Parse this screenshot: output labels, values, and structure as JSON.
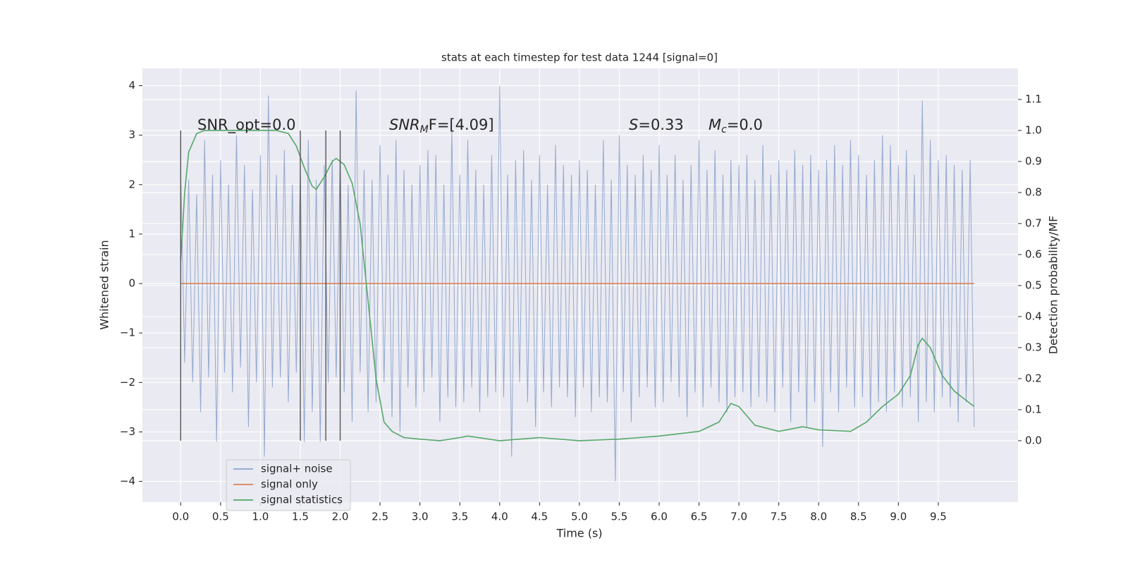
{
  "chart_data": {
    "type": "line",
    "title": "stats at each timestep for test data 1244 [signal=0]",
    "xlabel": "Time (s)",
    "ylabel": "Whitened strain",
    "y2label": "Detection probability/MF",
    "xlim": [
      -0.48,
      10.5
    ],
    "ylim": [
      -4.42,
      4.35
    ],
    "y2lim": [
      -0.198,
      1.2
    ],
    "xticks": [
      {
        "value": 0,
        "label": "0.0"
      },
      0.5,
      {
        "value": 1,
        "label": "1.0"
      },
      1.5,
      {
        "value": 2,
        "label": "2.0"
      },
      2.5,
      {
        "value": 3,
        "label": "3.0"
      },
      3.5,
      {
        "value": 4,
        "label": "4.0"
      },
      4.5,
      {
        "value": 5,
        "label": "5.0"
      },
      5.5,
      {
        "value": 6,
        "label": "6.0"
      },
      6.5,
      {
        "value": 7,
        "label": "7.0"
      },
      7.5,
      {
        "value": 8,
        "label": "8.0"
      },
      8.5,
      {
        "value": 9,
        "label": "9.0"
      },
      9.5
    ],
    "yticks": [
      {
        "value": -4,
        "label": "−4"
      },
      {
        "value": -3,
        "label": "−3"
      },
      {
        "value": -2,
        "label": "−2"
      },
      {
        "value": -1,
        "label": "−1"
      },
      0,
      1,
      2,
      3,
      4
    ],
    "y2ticks": [
      {
        "value": 0,
        "label": "0.0"
      },
      0.1,
      0.2,
      0.3,
      0.4,
      0.5,
      0.6,
      0.7,
      0.8,
      0.9,
      {
        "value": 1,
        "label": "1.0"
      },
      1.1
    ],
    "grid": true,
    "legend": "lower left",
    "series": [
      {
        "name": "signal+ noise",
        "color": "#4c72b0",
        "x": [
          0,
          0.05,
          0.1,
          0.15,
          0.2,
          0.25,
          0.3,
          0.35,
          0.4,
          0.45,
          0.5,
          0.55,
          0.6,
          0.65,
          0.7,
          0.75,
          0.8,
          0.85,
          0.9,
          0.95,
          1,
          1.05,
          1.1,
          1.15,
          1.2,
          1.25,
          1.3,
          1.35,
          1.4,
          1.45,
          1.5,
          1.55,
          1.6,
          1.65,
          1.7,
          1.75,
          1.8,
          1.85,
          1.9,
          1.95,
          2,
          2.05,
          2.1,
          2.15,
          2.2,
          2.25,
          2.3,
          2.35,
          2.4,
          2.45,
          2.5,
          2.55,
          2.6,
          2.65,
          2.7,
          2.75,
          2.8,
          2.85,
          2.9,
          2.95,
          3,
          3.05,
          3.1,
          3.15,
          3.2,
          3.25,
          3.3,
          3.35,
          3.4,
          3.45,
          3.5,
          3.55,
          3.6,
          3.65,
          3.7,
          3.75,
          3.8,
          3.85,
          3.9,
          3.95,
          4,
          4.05,
          4.1,
          4.15,
          4.2,
          4.25,
          4.3,
          4.35,
          4.4,
          4.45,
          4.5,
          4.55,
          4.6,
          4.65,
          4.7,
          4.75,
          4.8,
          4.85,
          4.9,
          4.95,
          5,
          5.05,
          5.1,
          5.15,
          5.2,
          5.25,
          5.3,
          5.35,
          5.4,
          5.45,
          5.5,
          5.55,
          5.6,
          5.65,
          5.7,
          5.75,
          5.8,
          5.85,
          5.9,
          5.95,
          6,
          6.05,
          6.1,
          6.15,
          6.2,
          6.25,
          6.3,
          6.35,
          6.4,
          6.45,
          6.5,
          6.55,
          6.6,
          6.65,
          6.7,
          6.75,
          6.8,
          6.85,
          6.9,
          6.95,
          7,
          7.05,
          7.1,
          7.15,
          7.2,
          7.25,
          7.3,
          7.35,
          7.4,
          7.45,
          7.5,
          7.55,
          7.6,
          7.65,
          7.7,
          7.75,
          7.8,
          7.85,
          7.9,
          7.95,
          8,
          8.05,
          8.1,
          8.15,
          8.2,
          8.25,
          8.3,
          8.35,
          8.4,
          8.45,
          8.5,
          8.55,
          8.6,
          8.65,
          8.7,
          8.75,
          8.8,
          8.85,
          8.9,
          8.95,
          9,
          9.05,
          9.1,
          9.15,
          9.2,
          9.25,
          9.3,
          9.35,
          9.4,
          9.45,
          9.5,
          9.55,
          9.6,
          9.65,
          9.7,
          9.75,
          9.8,
          9.85,
          9.9,
          9.95
        ],
        "values": [
          2.3,
          -1.6,
          2.1,
          -2.0,
          1.8,
          -2.6,
          2.9,
          -1.9,
          2.2,
          -3.2,
          2.5,
          -1.8,
          2.0,
          -2.2,
          3.0,
          -1.7,
          2.4,
          -2.9,
          1.9,
          -2.0,
          2.6,
          -3.5,
          3.8,
          -2.1,
          2.2,
          -1.9,
          2.7,
          -2.4,
          2.0,
          -1.8,
          2.3,
          -3.2,
          2.9,
          -2.6,
          2.1,
          -3.2,
          2.4,
          -2.0,
          2.5,
          -1.9,
          2.6,
          -2.2,
          2.0,
          -2.8,
          3.9,
          -1.8,
          2.3,
          -2.6,
          2.1,
          -2.4,
          2.8,
          -2.0,
          2.2,
          -2.7,
          2.9,
          -3.0,
          2.3,
          -2.1,
          2.0,
          -2.5,
          2.4,
          -2.2,
          2.7,
          -1.9,
          2.6,
          -2.8,
          2.0,
          -2.3,
          3.1,
          -2.5,
          2.2,
          -2.4,
          2.9,
          -2.1,
          2.3,
          -2.6,
          2.0,
          -2.3,
          2.6,
          -2.2,
          4.0,
          -2.3,
          2.2,
          -3.5,
          2.5,
          -2.0,
          2.7,
          -2.4,
          2.1,
          -2.9,
          2.6,
          -2.2,
          2.0,
          -2.5,
          2.8,
          -2.1,
          2.4,
          -2.3,
          2.2,
          -2.7,
          2.5,
          -2.1,
          2.3,
          -2.6,
          2.0,
          -2.3,
          2.9,
          -2.4,
          2.1,
          -4.0,
          3.0,
          -2.2,
          2.4,
          -2.8,
          2.2,
          -2.3,
          2.6,
          -2.1,
          2.3,
          -2.5,
          2.8,
          -2.4,
          2.2,
          -2.0,
          2.6,
          -2.3,
          2.1,
          -2.7,
          2.4,
          -2.2,
          2.9,
          -2.5,
          2.3,
          -2.1,
          2.7,
          -2.4,
          2.2,
          -2.6,
          2.5,
          -2.3,
          2.4,
          -2.2,
          2.6,
          -2.5,
          2.1,
          -2.3,
          2.8,
          -2.4,
          2.2,
          -2.6,
          2.5,
          -2.1,
          2.3,
          -2.8,
          2.7,
          -2.2,
          2.4,
          -2.9,
          2.6,
          -2.4,
          2.3,
          -3.3,
          2.5,
          -2.2,
          2.8,
          -2.6,
          2.4,
          -2.1,
          2.9,
          -2.5,
          2.6,
          -2.3,
          2.2,
          -2.7,
          2.5,
          -2.4,
          3.0,
          -2.6,
          2.8,
          -2.2,
          2.4,
          -2.5,
          2.7,
          -2.3,
          2.2,
          -2.8,
          3.7,
          -2.4,
          2.9,
          -2.6,
          2.5,
          -2.3,
          2.6,
          -2.5,
          2.4,
          -2.8,
          2.3,
          -2.4,
          2.5,
          -2.9
        ]
      },
      {
        "name": "signal only",
        "color": "#dd8452",
        "x": [
          0,
          9.95
        ],
        "values": [
          0,
          0
        ]
      },
      {
        "name": "signal statistics",
        "color": "#55a868",
        "axis": "y2",
        "x": [
          0,
          0.05,
          0.1,
          0.2,
          0.3,
          0.6,
          0.9,
          1.2,
          1.35,
          1.45,
          1.55,
          1.65,
          1.7,
          1.8,
          1.9,
          1.95,
          2.05,
          2.15,
          2.25,
          2.35,
          2.45,
          2.55,
          2.65,
          2.8,
          3.0,
          3.25,
          3.5,
          3.6,
          4.0,
          4.5,
          5.0,
          5.5,
          6.0,
          6.5,
          6.75,
          6.9,
          7.0,
          7.2,
          7.5,
          7.8,
          8.0,
          8.4,
          8.6,
          8.8,
          9.0,
          9.15,
          9.25,
          9.3,
          9.4,
          9.55,
          9.7,
          9.85,
          9.95
        ],
        "values": [
          0.58,
          0.8,
          0.93,
          0.99,
          1.0,
          1.0,
          1.0,
          1.0,
          0.99,
          0.95,
          0.88,
          0.82,
          0.81,
          0.85,
          0.9,
          0.91,
          0.89,
          0.83,
          0.7,
          0.45,
          0.2,
          0.06,
          0.03,
          0.01,
          0.005,
          0.0,
          0.01,
          0.015,
          0.0,
          0.01,
          0.0,
          0.005,
          0.015,
          0.03,
          0.06,
          0.12,
          0.11,
          0.05,
          0.03,
          0.045,
          0.035,
          0.03,
          0.06,
          0.11,
          0.15,
          0.21,
          0.31,
          0.33,
          0.3,
          0.21,
          0.16,
          0.13,
          0.11
        ]
      }
    ],
    "vlines": {
      "x": [
        0,
        1.5,
        1.82,
        2.0
      ],
      "ymin": 0,
      "ymax": 1,
      "axis": "y2",
      "color": "#555555"
    },
    "annotations": [
      {
        "text": "SNR_opt=0.0"
      },
      {
        "base": "SNR",
        "sub": "M",
        "tail": "F=[4.09]"
      },
      {
        "base": "S",
        "tail": "=0.33"
      },
      {
        "base": "M",
        "sub": "c",
        "tail": "=0.0"
      }
    ]
  }
}
